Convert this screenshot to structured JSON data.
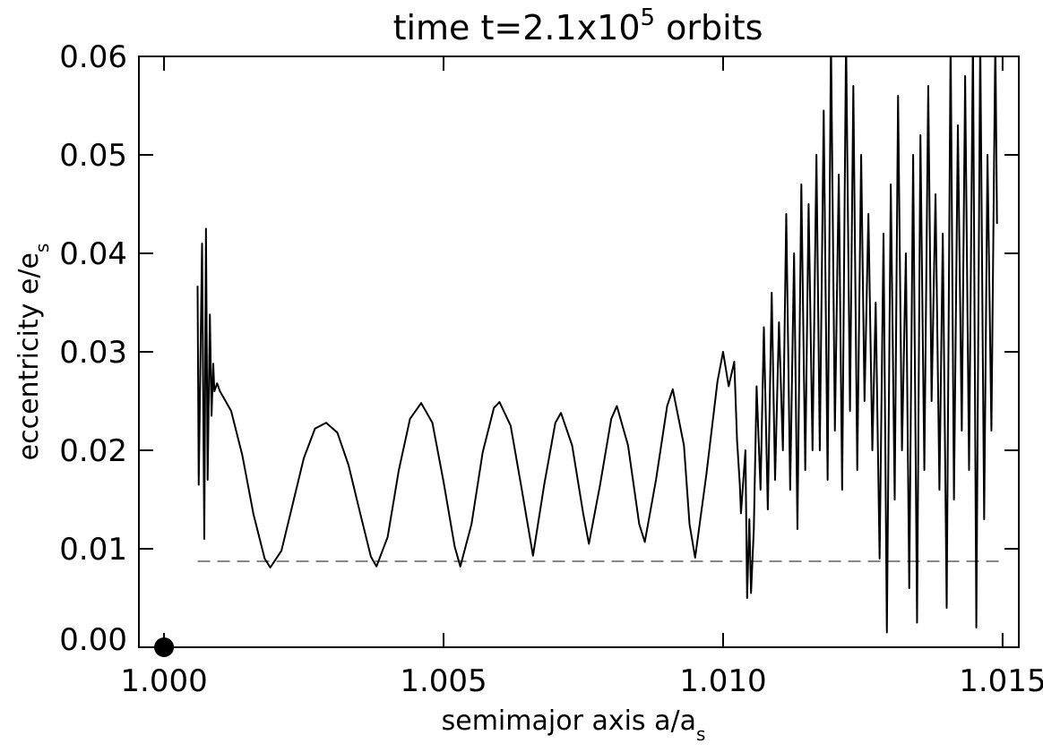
{
  "chart_data": {
    "type": "line",
    "title": [
      "time t=2.1x10",
      "5",
      " orbits"
    ],
    "x_label": [
      "semimajor axis a/a",
      "s"
    ],
    "y_label": [
      "eccentricity e/e",
      "s"
    ],
    "xlim": [
      0.99955,
      1.01529
    ],
    "ylim": [
      0,
      0.06
    ],
    "xticks": [
      {
        "value": 1.0,
        "label": "1.000"
      },
      {
        "value": 1.005,
        "label": "1.005"
      },
      {
        "value": 1.01,
        "label": "1.010"
      },
      {
        "value": 1.015,
        "label": "1.015"
      }
    ],
    "yticks": [
      {
        "value": 0,
        "label": "0.00"
      },
      {
        "value": 0.01,
        "label": "0.01"
      },
      {
        "value": 0.02,
        "label": "0.02"
      },
      {
        "value": 0.03,
        "label": "0.03"
      },
      {
        "value": 0.04,
        "label": "0.04"
      },
      {
        "value": 0.05,
        "label": "0.05"
      },
      {
        "value": 0.06,
        "label": "0.06"
      }
    ],
    "series": [
      {
        "color": "#000000",
        "x": [
          1.0006,
          1.00062,
          1.00068,
          1.00072,
          1.00075,
          1.00078,
          1.00082,
          1.00085,
          1.00088,
          1.0009,
          1.00095,
          1.001,
          1.0012,
          1.0014,
          1.0016,
          1.0018,
          1.0019,
          1.0021,
          1.0023,
          1.0025,
          1.0027,
          1.0029,
          1.0031,
          1.0033,
          1.0035,
          1.0037,
          1.0038,
          1.004,
          1.0042,
          1.0044,
          1.0046,
          1.0048,
          1.005,
          1.0052,
          1.0053,
          1.0055,
          1.0057,
          1.0059,
          1.006,
          1.0062,
          1.0064,
          1.0066,
          1.0068,
          1.007,
          1.0071,
          1.0073,
          1.0075,
          1.0076,
          1.0078,
          1.008,
          1.0081,
          1.0083,
          1.0085,
          1.0086,
          1.0088,
          1.009,
          1.0091,
          1.0093,
          1.0094,
          1.0095,
          1.0097,
          1.0099,
          1.01,
          1.0101,
          1.0102,
          1.01025,
          1.0103,
          1.01032,
          1.0104,
          1.01043,
          1.01047,
          1.0105,
          1.01055,
          1.0106,
          1.01067,
          1.01073,
          1.0108,
          1.01087,
          1.01093,
          1.011,
          1.01107,
          1.01113,
          1.0112,
          1.01127,
          1.01133,
          1.0114,
          1.01147,
          1.01153,
          1.0116,
          1.01167,
          1.01173,
          1.0118,
          1.01187,
          1.01193,
          1.012,
          1.01207,
          1.01213,
          1.0122,
          1.01227,
          1.01233,
          1.0124,
          1.01247,
          1.01253,
          1.0126,
          1.01267,
          1.01273,
          1.0128,
          1.01287,
          1.01293,
          1.013,
          1.01307,
          1.01313,
          1.0132,
          1.01327,
          1.01333,
          1.0134,
          1.01347,
          1.01353,
          1.0136,
          1.01367,
          1.01373,
          1.0138,
          1.01387,
          1.01393,
          1.014,
          1.01407,
          1.01413,
          1.0142,
          1.01427,
          1.01433,
          1.0144,
          1.01447,
          1.01453,
          1.0146,
          1.01467,
          1.01473,
          1.0148,
          1.01487,
          1.0149
        ],
        "values": [
          0.0367,
          0.0165,
          0.041,
          0.011,
          0.0425,
          0.017,
          0.0338,
          0.0235,
          0.0288,
          0.026,
          0.0268,
          0.026,
          0.024,
          0.0195,
          0.0135,
          0.009,
          0.0081,
          0.0098,
          0.0145,
          0.0192,
          0.0222,
          0.0228,
          0.0218,
          0.0185,
          0.0138,
          0.0092,
          0.0082,
          0.0112,
          0.018,
          0.0232,
          0.0248,
          0.0228,
          0.0168,
          0.0102,
          0.0082,
          0.0125,
          0.0198,
          0.0243,
          0.0249,
          0.0225,
          0.016,
          0.0093,
          0.0165,
          0.0228,
          0.0238,
          0.0205,
          0.0135,
          0.0105,
          0.0165,
          0.0232,
          0.0245,
          0.0205,
          0.0125,
          0.0107,
          0.017,
          0.0245,
          0.0262,
          0.0205,
          0.0125,
          0.0091,
          0.0175,
          0.027,
          0.03,
          0.0265,
          0.029,
          0.021,
          0.0165,
          0.0136,
          0.02,
          0.005,
          0.013,
          0.0055,
          0.012,
          0.0265,
          0.016,
          0.0325,
          0.014,
          0.036,
          0.017,
          0.033,
          0.02,
          0.044,
          0.016,
          0.04,
          0.012,
          0.047,
          0.018,
          0.045,
          0.02,
          0.05,
          0.02,
          0.0545,
          0.017,
          0.062,
          0.022,
          0.048,
          0.016,
          0.062,
          0.024,
          0.057,
          0.018,
          0.05,
          0.025,
          0.044,
          0.02,
          0.035,
          0.009,
          0.042,
          0.0015,
          0.047,
          0.015,
          0.056,
          0.02,
          0.04,
          0.006,
          0.05,
          0.0025,
          0.052,
          0.018,
          0.057,
          0.025,
          0.046,
          0.016,
          0.042,
          0.004,
          0.062,
          0.015,
          0.053,
          0.022,
          0.058,
          0.018,
          0.062,
          0.002,
          0.062,
          0.013,
          0.05,
          0.022,
          0.062,
          0.043
        ]
      }
    ],
    "reference": {
      "value": 0.00873,
      "x": [
        1.0006,
        1.015
      ],
      "color": "#888888"
    },
    "marker": {
      "x": 1.0,
      "value": 0,
      "color": "#000000"
    }
  }
}
